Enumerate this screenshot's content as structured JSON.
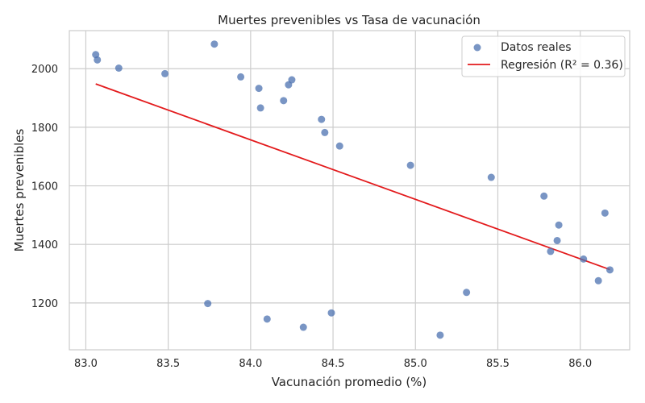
{
  "chart_data": {
    "type": "scatter",
    "title": "Muertes prevenibles vs Tasa de vacunación",
    "xlabel": "Vacunación promedio (%)",
    "ylabel": "Muertes prevenibles",
    "xlim": [
      82.9,
      86.3
    ],
    "ylim": [
      1040,
      2130
    ],
    "xticks": [
      83.0,
      83.5,
      84.0,
      84.5,
      85.0,
      85.5,
      86.0
    ],
    "xtick_labels": [
      "83.0",
      "83.5",
      "84.0",
      "84.5",
      "85.0",
      "85.5",
      "86.0"
    ],
    "yticks": [
      1200,
      1400,
      1600,
      1800,
      2000
    ],
    "ytick_labels": [
      "1200",
      "1400",
      "1600",
      "1800",
      "2000"
    ],
    "grid": true,
    "legend_position": "top-right",
    "series": [
      {
        "name": "Datos reales",
        "kind": "scatter",
        "color": "#4c72b0",
        "x": [
          83.06,
          83.07,
          83.2,
          83.48,
          83.74,
          83.78,
          83.94,
          84.05,
          84.06,
          84.1,
          84.2,
          84.23,
          84.25,
          84.32,
          84.43,
          84.45,
          84.49,
          84.54,
          84.97,
          85.15,
          85.31,
          85.46,
          85.78,
          85.82,
          85.86,
          85.87,
          86.02,
          86.11,
          86.15,
          86.18
        ],
        "y": [
          2048,
          2030,
          2002,
          1983,
          1198,
          2084,
          1972,
          1933,
          1866,
          1145,
          1891,
          1945,
          1962,
          1117,
          1827,
          1782,
          1166,
          1736,
          1670,
          1090,
          1236,
          1629,
          1565,
          1376,
          1413,
          1466,
          1350,
          1276,
          1507,
          1313
        ]
      },
      {
        "name": "Regresión (R² = 0.36)",
        "kind": "line",
        "color": "#e31a1c",
        "x": [
          83.06,
          86.18
        ],
        "y": [
          1948,
          1314
        ]
      }
    ]
  }
}
